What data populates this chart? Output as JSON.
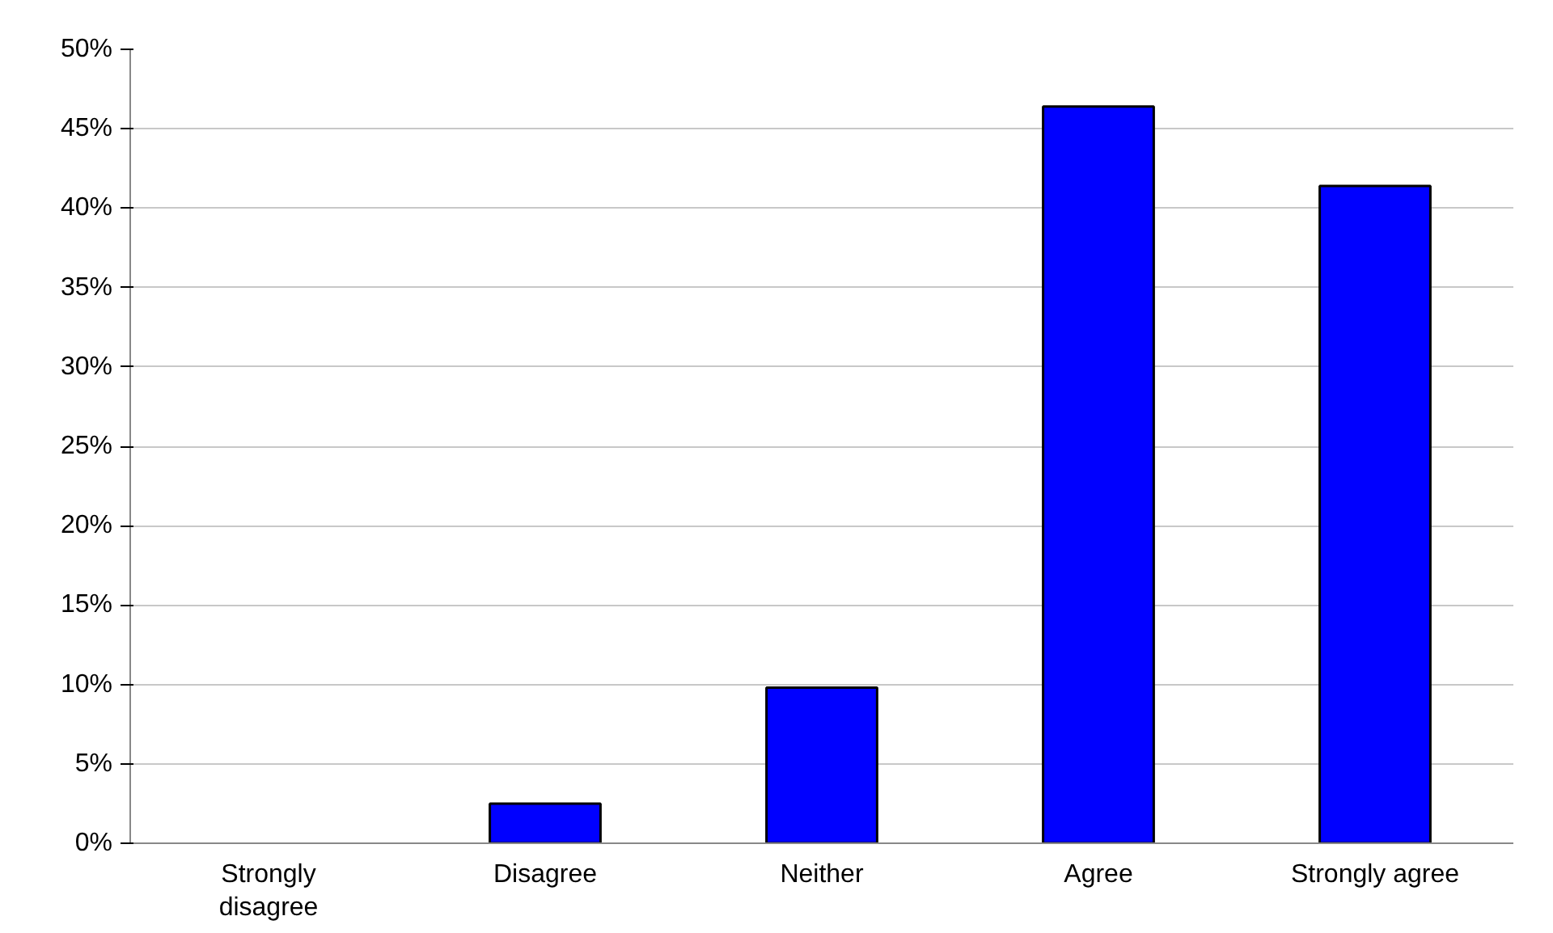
{
  "chart_data": {
    "type": "bar",
    "categories": [
      "Strongly\ndisagree",
      "Disagree",
      "Neither",
      "Agree",
      "Strongly agree"
    ],
    "values": [
      0,
      2.5,
      9.8,
      46.4,
      41.4
    ],
    "color": "#0000ff",
    "ylim": [
      0,
      50
    ],
    "yticks": [
      {
        "value": 0,
        "label": "0%"
      },
      {
        "value": 5,
        "label": "5%"
      },
      {
        "value": 10,
        "label": "10%"
      },
      {
        "value": 15,
        "label": "15%"
      },
      {
        "value": 20,
        "label": "20%"
      },
      {
        "value": 25,
        "label": "25%"
      },
      {
        "value": 30,
        "label": "30%"
      },
      {
        "value": 35,
        "label": "35%"
      },
      {
        "value": 40,
        "label": "40%"
      },
      {
        "value": 45,
        "label": "45%"
      },
      {
        "value": 50,
        "label": "50%"
      }
    ],
    "grid": "y"
  }
}
